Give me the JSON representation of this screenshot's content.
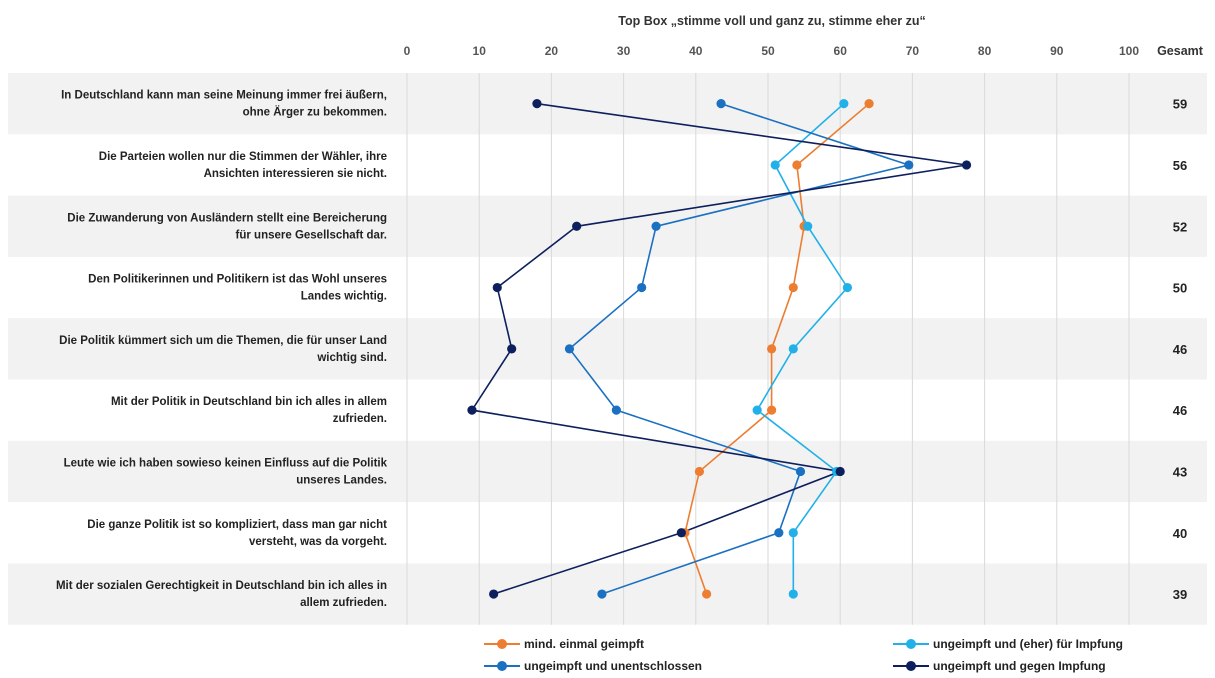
{
  "chart_data": {
    "type": "line",
    "title": "Top Box „stimme voll und ganz zu, stimme eher zu“",
    "xlim": [
      0,
      100
    ],
    "xticks": [
      0,
      10,
      20,
      30,
      40,
      50,
      60,
      70,
      80,
      90,
      100
    ],
    "total_header": "Gesamt",
    "grid": true,
    "legend_position": "bottom",
    "categories": [
      [
        "In Deutschland kann man seine Meinung immer frei äußern,",
        "ohne Ärger zu bekommen."
      ],
      [
        "Die Parteien wollen nur die Stimmen der Wähler, ihre",
        "Ansichten interessieren sie nicht."
      ],
      [
        "Die Zuwanderung von Ausländern stellt eine Bereicherung",
        "für unsere Gesellschaft dar."
      ],
      [
        "Den Politikerinnen und Politikern ist das Wohl unseres",
        "Landes wichtig."
      ],
      [
        "Die Politik kümmert sich um die Themen, die für unser Land",
        "wichtig sind."
      ],
      [
        "Mit der Politik in Deutschland bin ich alles in allem",
        "zufrieden."
      ],
      [
        "Leute wie ich haben sowieso keinen Einfluss auf die Politik",
        "unseres Landes."
      ],
      [
        "Die ganze Politik ist so kompliziert, dass man gar nicht",
        "versteht, was da vorgeht."
      ],
      [
        "Mit der sozialen Gerechtigkeit in Deutschland bin ich alles in",
        "allem zufrieden."
      ]
    ],
    "totals": [
      59,
      56,
      52,
      50,
      46,
      46,
      43,
      40,
      39
    ],
    "series": [
      {
        "name": "mind. einmal geimpft",
        "color": "#ED7D31",
        "values": [
          64,
          54,
          55,
          53.5,
          50.5,
          50.5,
          40.5,
          38.5,
          41.5
        ]
      },
      {
        "name": "ungeimpft und (eher) für Impfung",
        "color": "#21B1E8",
        "values": [
          60.5,
          51,
          55.5,
          61,
          53.5,
          48.5,
          59.5,
          53.5,
          53.5
        ]
      },
      {
        "name": "ungeimpft und unentschlossen",
        "color": "#1A70C1",
        "values": [
          43.5,
          69.5,
          34.5,
          32.5,
          22.5,
          29,
          54.5,
          51.5,
          27
        ]
      },
      {
        "name": "ungeimpft und gegen Impfung",
        "color": "#0D1F5C",
        "values": [
          18,
          77.5,
          23.5,
          12.5,
          14.5,
          9,
          60,
          38,
          12
        ]
      }
    ]
  }
}
